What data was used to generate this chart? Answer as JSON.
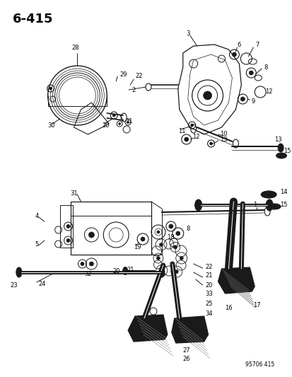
{
  "title": "6-415",
  "footer": "95706 415",
  "bg": "#ffffff",
  "lc": "#1a1a1a",
  "fig_w": 4.14,
  "fig_h": 5.33,
  "dpi": 100,
  "title_fs": 13,
  "label_fs": 6.0,
  "footer_fs": 5.5
}
